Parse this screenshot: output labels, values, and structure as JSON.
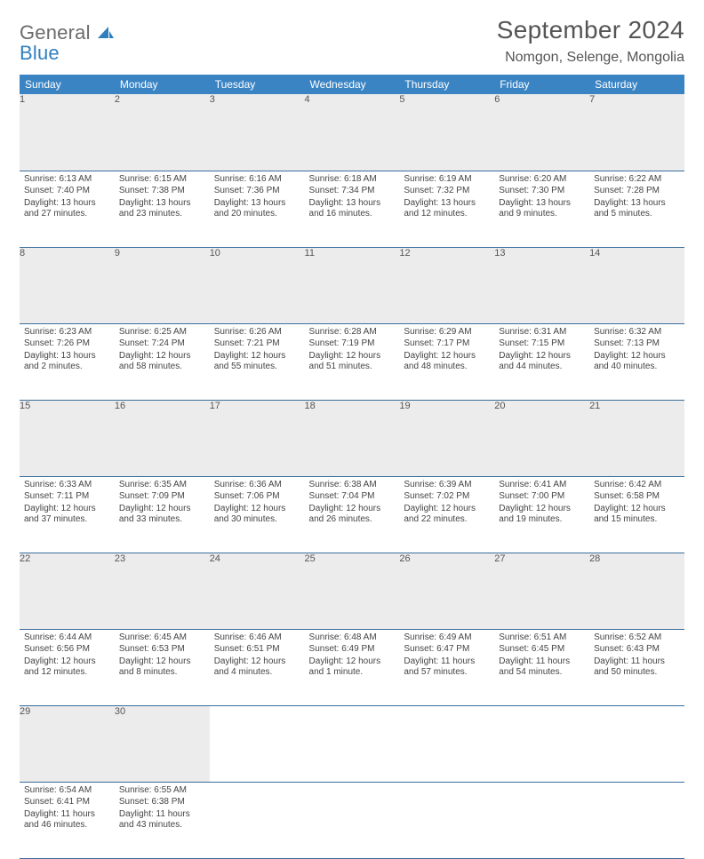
{
  "logo": {
    "line1": "General",
    "line2": "Blue"
  },
  "title": "September 2024",
  "subtitle": "Nomgon, Selenge, Mongolia",
  "colors": {
    "header_bg": "#3a84c4",
    "header_fg": "#ffffff",
    "daynum_bg": "#ececec",
    "row_border": "#3a6d9a",
    "logo_gray": "#6b6b6b",
    "logo_blue": "#2f7fbf"
  },
  "weekdays": [
    "Sunday",
    "Monday",
    "Tuesday",
    "Wednesday",
    "Thursday",
    "Friday",
    "Saturday"
  ],
  "weeks": [
    [
      {
        "n": "1",
        "sr": "6:13 AM",
        "ss": "7:40 PM",
        "dl": "13 hours and 27 minutes."
      },
      {
        "n": "2",
        "sr": "6:15 AM",
        "ss": "7:38 PM",
        "dl": "13 hours and 23 minutes."
      },
      {
        "n": "3",
        "sr": "6:16 AM",
        "ss": "7:36 PM",
        "dl": "13 hours and 20 minutes."
      },
      {
        "n": "4",
        "sr": "6:18 AM",
        "ss": "7:34 PM",
        "dl": "13 hours and 16 minutes."
      },
      {
        "n": "5",
        "sr": "6:19 AM",
        "ss": "7:32 PM",
        "dl": "13 hours and 12 minutes."
      },
      {
        "n": "6",
        "sr": "6:20 AM",
        "ss": "7:30 PM",
        "dl": "13 hours and 9 minutes."
      },
      {
        "n": "7",
        "sr": "6:22 AM",
        "ss": "7:28 PM",
        "dl": "13 hours and 5 minutes."
      }
    ],
    [
      {
        "n": "8",
        "sr": "6:23 AM",
        "ss": "7:26 PM",
        "dl": "13 hours and 2 minutes."
      },
      {
        "n": "9",
        "sr": "6:25 AM",
        "ss": "7:24 PM",
        "dl": "12 hours and 58 minutes."
      },
      {
        "n": "10",
        "sr": "6:26 AM",
        "ss": "7:21 PM",
        "dl": "12 hours and 55 minutes."
      },
      {
        "n": "11",
        "sr": "6:28 AM",
        "ss": "7:19 PM",
        "dl": "12 hours and 51 minutes."
      },
      {
        "n": "12",
        "sr": "6:29 AM",
        "ss": "7:17 PM",
        "dl": "12 hours and 48 minutes."
      },
      {
        "n": "13",
        "sr": "6:31 AM",
        "ss": "7:15 PM",
        "dl": "12 hours and 44 minutes."
      },
      {
        "n": "14",
        "sr": "6:32 AM",
        "ss": "7:13 PM",
        "dl": "12 hours and 40 minutes."
      }
    ],
    [
      {
        "n": "15",
        "sr": "6:33 AM",
        "ss": "7:11 PM",
        "dl": "12 hours and 37 minutes."
      },
      {
        "n": "16",
        "sr": "6:35 AM",
        "ss": "7:09 PM",
        "dl": "12 hours and 33 minutes."
      },
      {
        "n": "17",
        "sr": "6:36 AM",
        "ss": "7:06 PM",
        "dl": "12 hours and 30 minutes."
      },
      {
        "n": "18",
        "sr": "6:38 AM",
        "ss": "7:04 PM",
        "dl": "12 hours and 26 minutes."
      },
      {
        "n": "19",
        "sr": "6:39 AM",
        "ss": "7:02 PM",
        "dl": "12 hours and 22 minutes."
      },
      {
        "n": "20",
        "sr": "6:41 AM",
        "ss": "7:00 PM",
        "dl": "12 hours and 19 minutes."
      },
      {
        "n": "21",
        "sr": "6:42 AM",
        "ss": "6:58 PM",
        "dl": "12 hours and 15 minutes."
      }
    ],
    [
      {
        "n": "22",
        "sr": "6:44 AM",
        "ss": "6:56 PM",
        "dl": "12 hours and 12 minutes."
      },
      {
        "n": "23",
        "sr": "6:45 AM",
        "ss": "6:53 PM",
        "dl": "12 hours and 8 minutes."
      },
      {
        "n": "24",
        "sr": "6:46 AM",
        "ss": "6:51 PM",
        "dl": "12 hours and 4 minutes."
      },
      {
        "n": "25",
        "sr": "6:48 AM",
        "ss": "6:49 PM",
        "dl": "12 hours and 1 minute."
      },
      {
        "n": "26",
        "sr": "6:49 AM",
        "ss": "6:47 PM",
        "dl": "11 hours and 57 minutes."
      },
      {
        "n": "27",
        "sr": "6:51 AM",
        "ss": "6:45 PM",
        "dl": "11 hours and 54 minutes."
      },
      {
        "n": "28",
        "sr": "6:52 AM",
        "ss": "6:43 PM",
        "dl": "11 hours and 50 minutes."
      }
    ],
    [
      {
        "n": "29",
        "sr": "6:54 AM",
        "ss": "6:41 PM",
        "dl": "11 hours and 46 minutes."
      },
      {
        "n": "30",
        "sr": "6:55 AM",
        "ss": "6:38 PM",
        "dl": "11 hours and 43 minutes."
      },
      null,
      null,
      null,
      null,
      null
    ]
  ],
  "labels": {
    "sunrise": "Sunrise:",
    "sunset": "Sunset:",
    "daylight": "Daylight:"
  }
}
